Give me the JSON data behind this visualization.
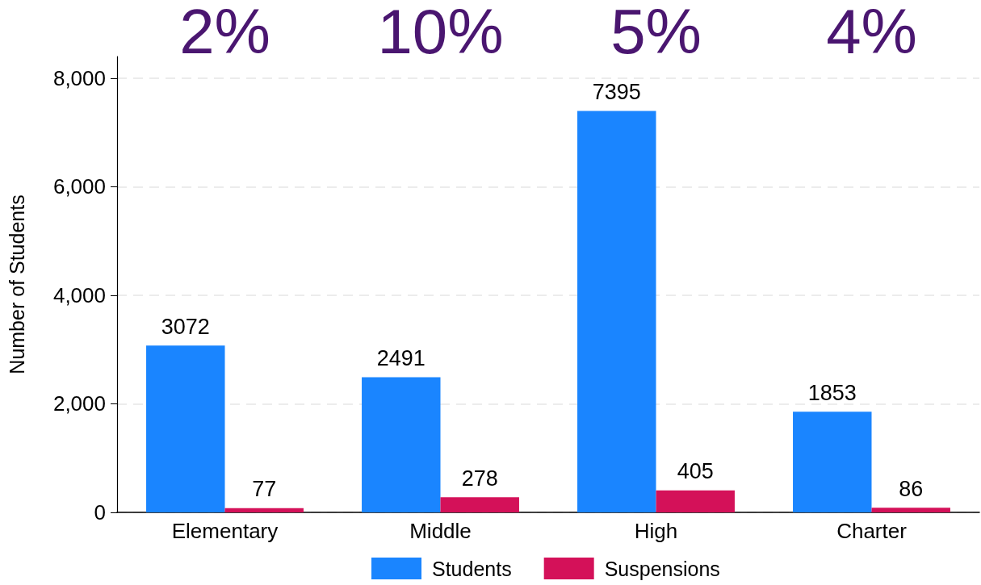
{
  "chart_data": {
    "type": "bar",
    "ylabel": "Number of Students",
    "categories": [
      "Elementary",
      "Middle",
      "High",
      "Charter"
    ],
    "series": [
      {
        "name": "Students",
        "color": "#1a85ff",
        "values": [
          3072,
          2491,
          7395,
          1853
        ]
      },
      {
        "name": "Suspensions",
        "color": "#d41159",
        "values": [
          77,
          278,
          405,
          86
        ]
      }
    ],
    "ylim": [
      0,
      8400
    ],
    "yticks": [
      0,
      {
        "value": 2000,
        "label": "2,000"
      },
      {
        "value": 4000,
        "label": "4,000"
      },
      {
        "value": 6000,
        "label": "6,000"
      },
      {
        "value": 8000,
        "label": "8,000"
      }
    ],
    "annotations": [
      "2%",
      "10%",
      "5%",
      "4%"
    ],
    "data_labels": true,
    "grid": "y",
    "legend": "bottom"
  }
}
